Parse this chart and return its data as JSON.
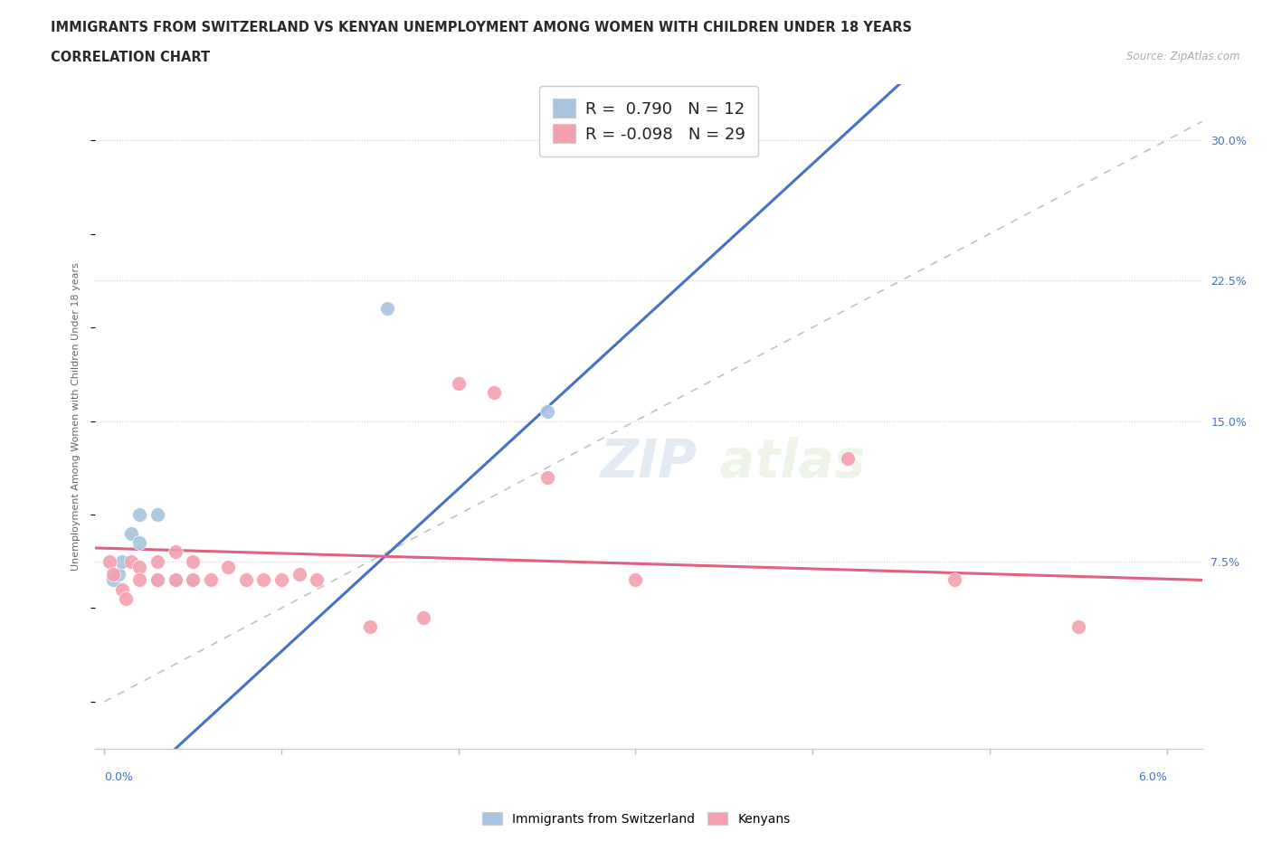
{
  "title_line1": "IMMIGRANTS FROM SWITZERLAND VS KENYAN UNEMPLOYMENT AMONG WOMEN WITH CHILDREN UNDER 18 YEARS",
  "title_line2": "CORRELATION CHART",
  "source": "Source: ZipAtlas.com",
  "ylabel_label": "Unemployment Among Women with Children Under 18 years",
  "ytick_labels": [
    "7.5%",
    "15.0%",
    "22.5%",
    "30.0%"
  ],
  "ytick_values": [
    0.075,
    0.15,
    0.225,
    0.3
  ],
  "xlim": [
    -0.0005,
    0.062
  ],
  "ylim": [
    -0.025,
    0.33
  ],
  "r_swiss": 0.79,
  "n_swiss": 12,
  "r_kenyan": -0.098,
  "n_kenyan": 29,
  "swiss_color": "#a8c4e0",
  "kenyan_color": "#f4a0b0",
  "swiss_line_color": "#4472c4",
  "kenyan_line_color": "#e06080",
  "diagonal_color": "#bbbbbb",
  "swiss_scatter": [
    [
      0.0005,
      0.065
    ],
    [
      0.0008,
      0.068
    ],
    [
      0.001,
      0.075
    ],
    [
      0.0015,
      0.09
    ],
    [
      0.002,
      0.085
    ],
    [
      0.002,
      0.1
    ],
    [
      0.003,
      0.1
    ],
    [
      0.003,
      0.065
    ],
    [
      0.004,
      0.065
    ],
    [
      0.005,
      0.065
    ],
    [
      0.016,
      0.21
    ],
    [
      0.025,
      0.155
    ]
  ],
  "kenyan_scatter": [
    [
      0.0003,
      0.075
    ],
    [
      0.0005,
      0.068
    ],
    [
      0.001,
      0.06
    ],
    [
      0.0012,
      0.055
    ],
    [
      0.0015,
      0.075
    ],
    [
      0.002,
      0.072
    ],
    [
      0.002,
      0.065
    ],
    [
      0.003,
      0.075
    ],
    [
      0.003,
      0.065
    ],
    [
      0.004,
      0.08
    ],
    [
      0.004,
      0.065
    ],
    [
      0.005,
      0.075
    ],
    [
      0.005,
      0.065
    ],
    [
      0.006,
      0.065
    ],
    [
      0.007,
      0.072
    ],
    [
      0.008,
      0.065
    ],
    [
      0.009,
      0.065
    ],
    [
      0.01,
      0.065
    ],
    [
      0.011,
      0.068
    ],
    [
      0.012,
      0.065
    ],
    [
      0.015,
      0.04
    ],
    [
      0.018,
      0.045
    ],
    [
      0.02,
      0.17
    ],
    [
      0.022,
      0.165
    ],
    [
      0.025,
      0.12
    ],
    [
      0.03,
      0.065
    ],
    [
      0.042,
      0.13
    ],
    [
      0.048,
      0.065
    ],
    [
      0.055,
      0.04
    ]
  ],
  "swiss_trendline": [
    0.0,
    -0.06,
    0.038,
    0.27
  ],
  "kenyan_trendline": [
    0.0,
    0.082,
    0.062,
    0.065
  ],
  "background_color": "#ffffff",
  "grid_color": "#e0e0e0",
  "dotted_grid_color": "#cccccc",
  "title_fontsize": 10.5,
  "subtitle_fontsize": 10.5,
  "axis_label_fontsize": 9,
  "legend_fontsize": 13,
  "marker_size": 130
}
